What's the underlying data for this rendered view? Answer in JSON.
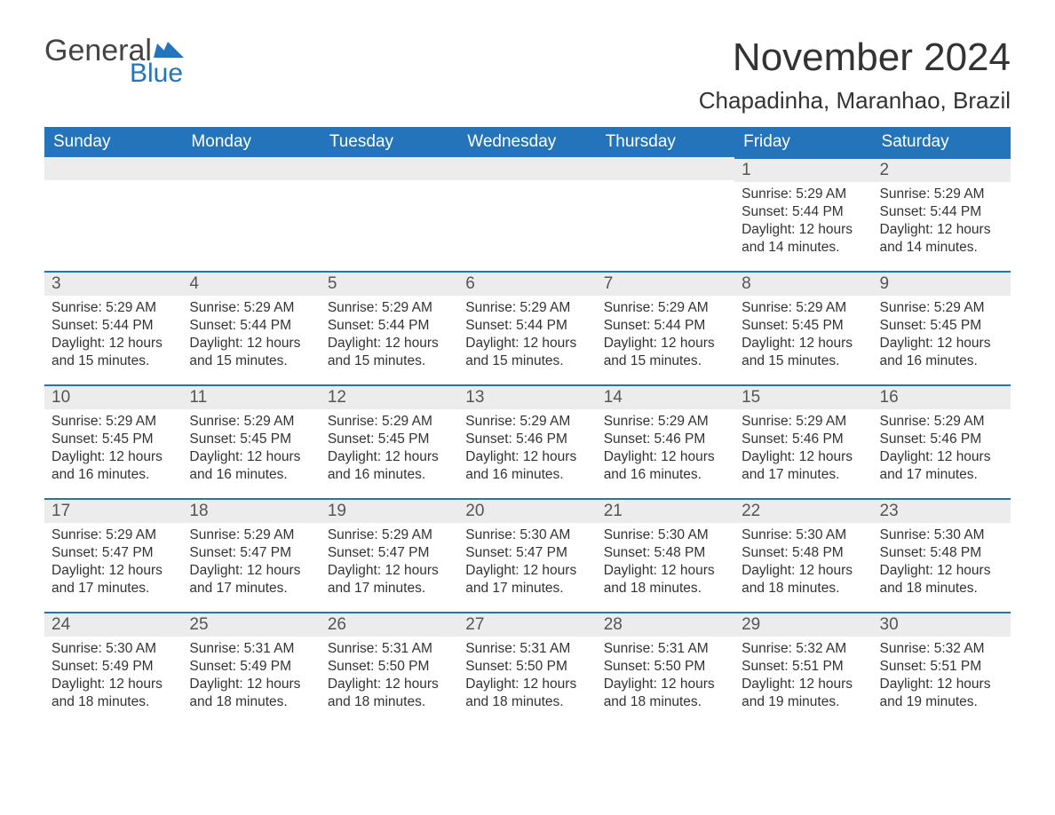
{
  "brand": {
    "word1": "General",
    "word2": "Blue",
    "accent_color": "#2374bb"
  },
  "title": "November 2024",
  "location": "Chapadinha, Maranhao, Brazil",
  "weekday_headers": [
    "Sunday",
    "Monday",
    "Tuesday",
    "Wednesday",
    "Thursday",
    "Friday",
    "Saturday"
  ],
  "colors": {
    "header_bg": "#2374bb",
    "header_text": "#ffffff",
    "daynum_bg": "#ececec",
    "rule": "#2374bb",
    "text": "#333333"
  },
  "weeks": [
    [
      null,
      null,
      null,
      null,
      null,
      {
        "n": "1",
        "sunrise": "Sunrise: 5:29 AM",
        "sunset": "Sunset: 5:44 PM",
        "daylight": "Daylight: 12 hours and 14 minutes."
      },
      {
        "n": "2",
        "sunrise": "Sunrise: 5:29 AM",
        "sunset": "Sunset: 5:44 PM",
        "daylight": "Daylight: 12 hours and 14 minutes."
      }
    ],
    [
      {
        "n": "3",
        "sunrise": "Sunrise: 5:29 AM",
        "sunset": "Sunset: 5:44 PM",
        "daylight": "Daylight: 12 hours and 15 minutes."
      },
      {
        "n": "4",
        "sunrise": "Sunrise: 5:29 AM",
        "sunset": "Sunset: 5:44 PM",
        "daylight": "Daylight: 12 hours and 15 minutes."
      },
      {
        "n": "5",
        "sunrise": "Sunrise: 5:29 AM",
        "sunset": "Sunset: 5:44 PM",
        "daylight": "Daylight: 12 hours and 15 minutes."
      },
      {
        "n": "6",
        "sunrise": "Sunrise: 5:29 AM",
        "sunset": "Sunset: 5:44 PM",
        "daylight": "Daylight: 12 hours and 15 minutes."
      },
      {
        "n": "7",
        "sunrise": "Sunrise: 5:29 AM",
        "sunset": "Sunset: 5:44 PM",
        "daylight": "Daylight: 12 hours and 15 minutes."
      },
      {
        "n": "8",
        "sunrise": "Sunrise: 5:29 AM",
        "sunset": "Sunset: 5:45 PM",
        "daylight": "Daylight: 12 hours and 15 minutes."
      },
      {
        "n": "9",
        "sunrise": "Sunrise: 5:29 AM",
        "sunset": "Sunset: 5:45 PM",
        "daylight": "Daylight: 12 hours and 16 minutes."
      }
    ],
    [
      {
        "n": "10",
        "sunrise": "Sunrise: 5:29 AM",
        "sunset": "Sunset: 5:45 PM",
        "daylight": "Daylight: 12 hours and 16 minutes."
      },
      {
        "n": "11",
        "sunrise": "Sunrise: 5:29 AM",
        "sunset": "Sunset: 5:45 PM",
        "daylight": "Daylight: 12 hours and 16 minutes."
      },
      {
        "n": "12",
        "sunrise": "Sunrise: 5:29 AM",
        "sunset": "Sunset: 5:45 PM",
        "daylight": "Daylight: 12 hours and 16 minutes."
      },
      {
        "n": "13",
        "sunrise": "Sunrise: 5:29 AM",
        "sunset": "Sunset: 5:46 PM",
        "daylight": "Daylight: 12 hours and 16 minutes."
      },
      {
        "n": "14",
        "sunrise": "Sunrise: 5:29 AM",
        "sunset": "Sunset: 5:46 PM",
        "daylight": "Daylight: 12 hours and 16 minutes."
      },
      {
        "n": "15",
        "sunrise": "Sunrise: 5:29 AM",
        "sunset": "Sunset: 5:46 PM",
        "daylight": "Daylight: 12 hours and 17 minutes."
      },
      {
        "n": "16",
        "sunrise": "Sunrise: 5:29 AM",
        "sunset": "Sunset: 5:46 PM",
        "daylight": "Daylight: 12 hours and 17 minutes."
      }
    ],
    [
      {
        "n": "17",
        "sunrise": "Sunrise: 5:29 AM",
        "sunset": "Sunset: 5:47 PM",
        "daylight": "Daylight: 12 hours and 17 minutes."
      },
      {
        "n": "18",
        "sunrise": "Sunrise: 5:29 AM",
        "sunset": "Sunset: 5:47 PM",
        "daylight": "Daylight: 12 hours and 17 minutes."
      },
      {
        "n": "19",
        "sunrise": "Sunrise: 5:29 AM",
        "sunset": "Sunset: 5:47 PM",
        "daylight": "Daylight: 12 hours and 17 minutes."
      },
      {
        "n": "20",
        "sunrise": "Sunrise: 5:30 AM",
        "sunset": "Sunset: 5:47 PM",
        "daylight": "Daylight: 12 hours and 17 minutes."
      },
      {
        "n": "21",
        "sunrise": "Sunrise: 5:30 AM",
        "sunset": "Sunset: 5:48 PM",
        "daylight": "Daylight: 12 hours and 18 minutes."
      },
      {
        "n": "22",
        "sunrise": "Sunrise: 5:30 AM",
        "sunset": "Sunset: 5:48 PM",
        "daylight": "Daylight: 12 hours and 18 minutes."
      },
      {
        "n": "23",
        "sunrise": "Sunrise: 5:30 AM",
        "sunset": "Sunset: 5:48 PM",
        "daylight": "Daylight: 12 hours and 18 minutes."
      }
    ],
    [
      {
        "n": "24",
        "sunrise": "Sunrise: 5:30 AM",
        "sunset": "Sunset: 5:49 PM",
        "daylight": "Daylight: 12 hours and 18 minutes."
      },
      {
        "n": "25",
        "sunrise": "Sunrise: 5:31 AM",
        "sunset": "Sunset: 5:49 PM",
        "daylight": "Daylight: 12 hours and 18 minutes."
      },
      {
        "n": "26",
        "sunrise": "Sunrise: 5:31 AM",
        "sunset": "Sunset: 5:50 PM",
        "daylight": "Daylight: 12 hours and 18 minutes."
      },
      {
        "n": "27",
        "sunrise": "Sunrise: 5:31 AM",
        "sunset": "Sunset: 5:50 PM",
        "daylight": "Daylight: 12 hours and 18 minutes."
      },
      {
        "n": "28",
        "sunrise": "Sunrise: 5:31 AM",
        "sunset": "Sunset: 5:50 PM",
        "daylight": "Daylight: 12 hours and 18 minutes."
      },
      {
        "n": "29",
        "sunrise": "Sunrise: 5:32 AM",
        "sunset": "Sunset: 5:51 PM",
        "daylight": "Daylight: 12 hours and 19 minutes."
      },
      {
        "n": "30",
        "sunrise": "Sunrise: 5:32 AM",
        "sunset": "Sunset: 5:51 PM",
        "daylight": "Daylight: 12 hours and 19 minutes."
      }
    ]
  ]
}
